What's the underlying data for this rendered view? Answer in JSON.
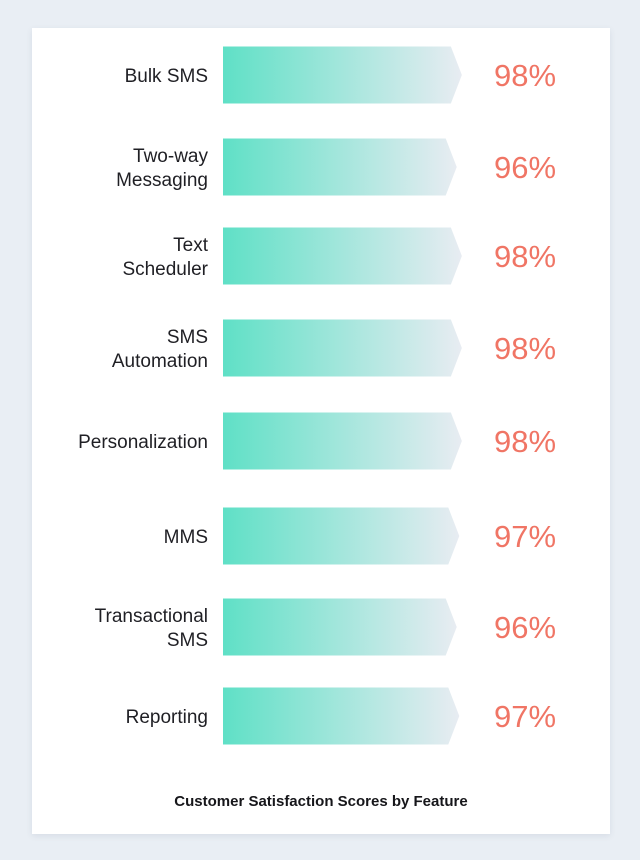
{
  "chart_data": {
    "type": "bar",
    "orientation": "horizontal",
    "title": "Customer Satisfaction Scores by Feature",
    "categories": [
      [
        "Bulk SMS"
      ],
      [
        "Two-way",
        "Messaging"
      ],
      [
        "Text",
        "Scheduler"
      ],
      [
        "SMS",
        "Automation"
      ],
      [
        "Personalization"
      ],
      [
        "MMS"
      ],
      [
        "Transactional",
        "SMS"
      ],
      [
        "Reporting"
      ]
    ],
    "values": [
      98,
      96,
      98,
      98,
      98,
      97,
      96,
      97
    ],
    "value_labels": [
      "98%",
      "96%",
      "98%",
      "98%",
      "98%",
      "97%",
      "96%",
      "97%"
    ],
    "unit": "%",
    "xlim": [
      0,
      100
    ],
    "grid": false,
    "legend": "none",
    "colors": {
      "bar_start": "#5fe0c6",
      "bar_end": "#e8ecf2",
      "value_text": "#f07565",
      "label_text": "#1f1f24"
    }
  }
}
